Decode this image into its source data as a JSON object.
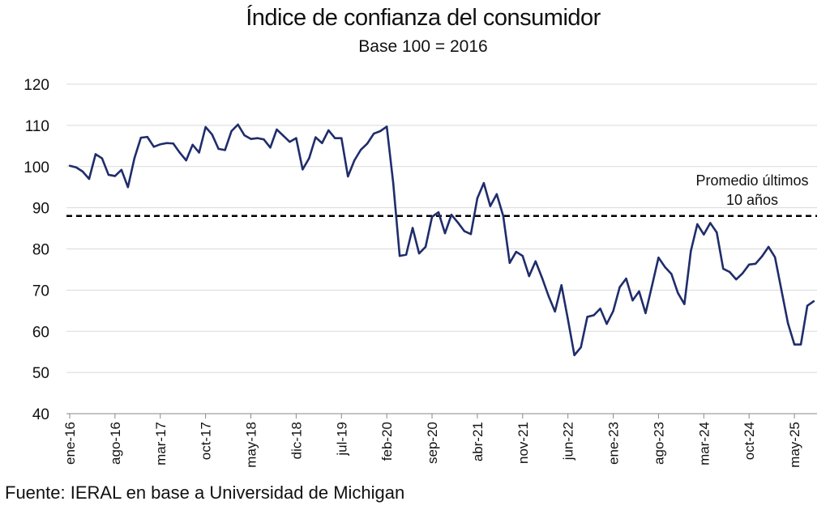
{
  "chart_data": {
    "type": "line",
    "title": "Índice de confianza del consumidor",
    "subtitle": "Base 100 = 2016",
    "source": "Fuente: IERAL en base a Universidad de Michigan",
    "ylim": [
      40,
      120
    ],
    "yticks": [
      40,
      50,
      60,
      70,
      80,
      90,
      100,
      110,
      120
    ],
    "grid": true,
    "xtick_labels": [
      "ene-16",
      "ago-16",
      "mar-17",
      "oct-17",
      "may-18",
      "dic-18",
      "jul-19",
      "feb-20",
      "sep-20",
      "abr-21",
      "nov-21",
      "jun-22",
      "ene-23",
      "ago-23",
      "mar-24",
      "oct-24",
      "may-25"
    ],
    "reference_line": {
      "value": 88,
      "label_line1": "Promedio últimos",
      "label_line2": "10 años",
      "style": "dashed"
    },
    "series": [
      {
        "color": "#1f2d6b",
        "values": [
          100.2,
          99.8,
          98.8,
          97.0,
          103.0,
          102.0,
          98.0,
          97.7,
          99.2,
          95.0,
          102.0,
          107.0,
          107.2,
          104.8,
          105.4,
          105.7,
          105.6,
          103.4,
          101.5,
          105.3,
          103.4,
          109.6,
          107.8,
          104.3,
          104.0,
          108.6,
          110.2,
          107.6,
          106.7,
          106.9,
          106.6,
          104.6,
          109.0,
          107.5,
          106.0,
          106.9,
          99.3,
          102.0,
          107.1,
          105.7,
          108.8,
          106.9,
          106.9,
          97.6,
          101.5,
          104.1,
          105.6,
          108.0,
          108.6,
          109.7,
          96.0,
          78.3,
          78.6,
          85.1,
          78.9,
          80.5,
          87.8,
          88.9,
          83.8,
          88.3,
          86.4,
          84.3,
          83.6,
          92.3,
          96.0,
          90.4,
          93.3,
          88.0,
          76.6,
          79.3,
          78.3,
          73.4,
          77.0,
          73.0,
          68.6,
          64.8,
          71.2,
          62.9,
          54.2,
          56.1,
          63.5,
          63.9,
          65.5,
          61.8,
          64.9,
          70.7,
          72.8,
          67.5,
          69.7,
          64.4,
          71.1,
          77.9,
          75.6,
          73.9,
          69.3,
          66.6,
          79.5,
          86.0,
          83.5,
          86.3,
          84.0,
          75.2,
          74.4,
          72.6,
          74.1,
          76.2,
          76.4,
          78.2,
          80.5,
          78.0,
          70.0,
          62.0,
          56.8,
          56.8,
          66.2,
          67.3
        ]
      }
    ]
  }
}
